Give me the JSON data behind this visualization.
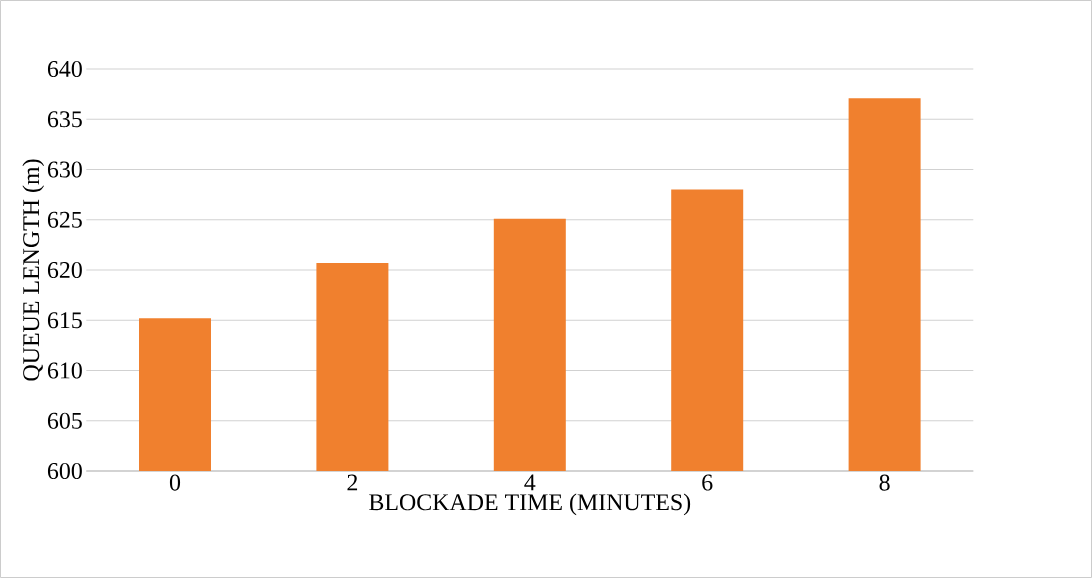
{
  "chart_data": {
    "type": "bar",
    "xlabel": "BLOCKADE TIME (MINUTES)",
    "ylabel": "QUEUE LENGTH (m)",
    "categories": [
      "0",
      "2",
      "4",
      "6",
      "8"
    ],
    "values": [
      615.2,
      620.7,
      625.1,
      628.0,
      637.1
    ],
    "color": "#f0802e",
    "ylim": [
      600,
      640
    ],
    "yticks": [
      600,
      605,
      610,
      615,
      620,
      625,
      630,
      635,
      640
    ],
    "grid": "y"
  }
}
